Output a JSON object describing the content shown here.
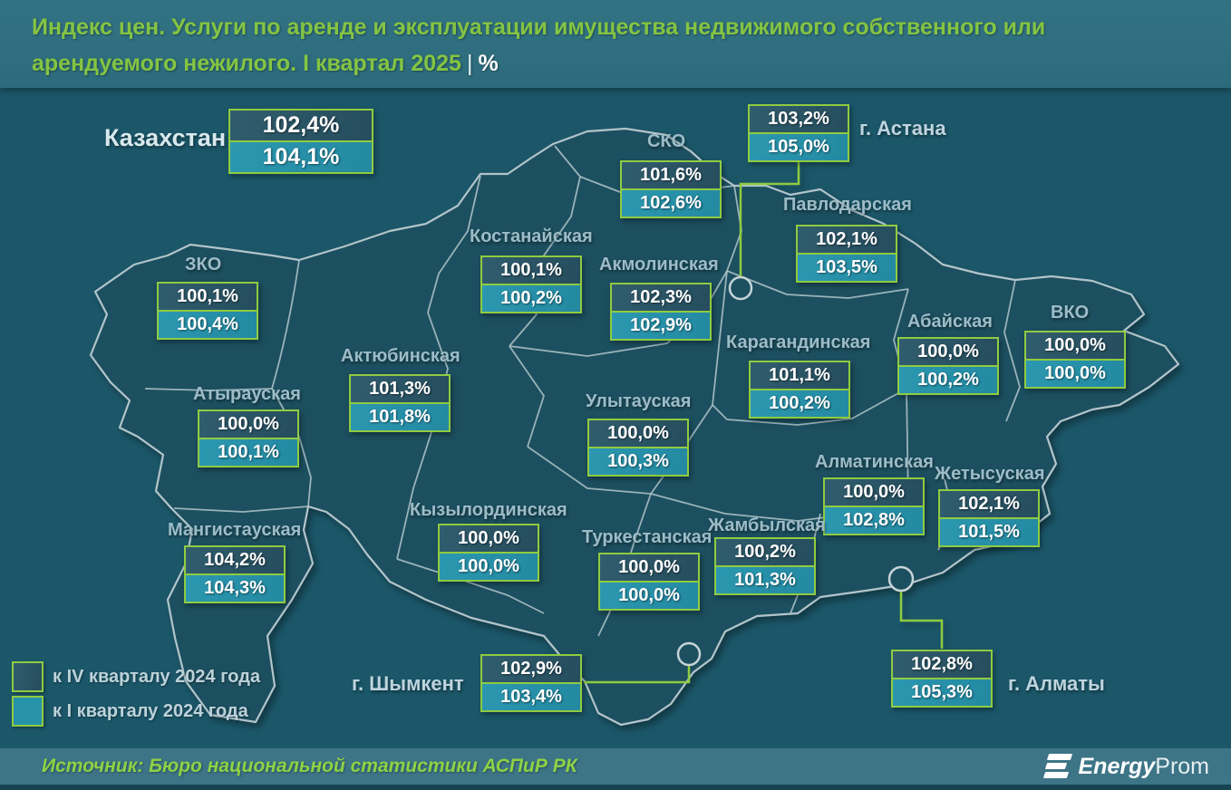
{
  "title": {
    "line1": "Индекс цен. Услуги по аренде и эксплуатации имущества недвижимого собственного или",
    "line2": "арендуемого нежилого. I квартал 2025",
    "separator": "|",
    "unit": "%"
  },
  "national": {
    "name": "Казахстан",
    "q4": "102,4%",
    "q1": "104,1%"
  },
  "regions": [
    {
      "id": "sko",
      "name": "СКО",
      "q4": "101,6%",
      "q1": "102,6%"
    },
    {
      "id": "astana",
      "name": "г. Астана",
      "q4": "103,2%",
      "q1": "105,0%"
    },
    {
      "id": "pavlodar",
      "name": "Павлодарская",
      "q4": "102,1%",
      "q1": "103,5%"
    },
    {
      "id": "kostanay",
      "name": "Костанайская",
      "q4": "100,1%",
      "q1": "100,2%"
    },
    {
      "id": "akmola",
      "name": "Акмолинская",
      "q4": "102,3%",
      "q1": "102,9%"
    },
    {
      "id": "zko",
      "name": "ЗКО",
      "q4": "100,1%",
      "q1": "100,4%"
    },
    {
      "id": "aktobe",
      "name": "Актюбинская",
      "q4": "101,3%",
      "q1": "101,8%"
    },
    {
      "id": "atyrau",
      "name": "Атырауская",
      "q4": "100,0%",
      "q1": "100,1%"
    },
    {
      "id": "karaganda",
      "name": "Карагандинская",
      "q4": "101,1%",
      "q1": "100,2%"
    },
    {
      "id": "abay",
      "name": "Абайская",
      "q4": "100,0%",
      "q1": "100,2%"
    },
    {
      "id": "vko",
      "name": "ВКО",
      "q4": "100,0%",
      "q1": "100,0%"
    },
    {
      "id": "ulytau",
      "name": "Улытауская",
      "q4": "100,0%",
      "q1": "100,3%"
    },
    {
      "id": "almaty-obl",
      "name": "Алматинская",
      "q4": "100,0%",
      "q1": "102,8%"
    },
    {
      "id": "zhetysu",
      "name": "Жетысуская",
      "q4": "102,1%",
      "q1": "101,5%"
    },
    {
      "id": "mangystau",
      "name": "Мангистауская",
      "q4": "104,2%",
      "q1": "104,3%"
    },
    {
      "id": "kyzylorda",
      "name": "Кызылординская",
      "q4": "100,0%",
      "q1": "100,0%"
    },
    {
      "id": "turkestan",
      "name": "Туркестанская",
      "q4": "100,0%",
      "q1": "100,0%"
    },
    {
      "id": "zhambyl",
      "name": "Жамбылская",
      "q4": "100,2%",
      "q1": "101,3%"
    },
    {
      "id": "shymkent",
      "name": "г. Шымкент",
      "q4": "102,9%",
      "q1": "103,4%"
    },
    {
      "id": "almaty-city",
      "name": "г. Алматы",
      "q4": "102,8%",
      "q1": "105,3%"
    }
  ],
  "legend": [
    {
      "label": "к IV кварталу 2024 года",
      "color": "#2c5868"
    },
    {
      "label": "к I кварталу 2024 года",
      "color": "#2793ab"
    }
  ],
  "source": "Источник: Бюро национальной статистики АСПиР РК",
  "logo": {
    "bold": "Energy",
    "light": "Prom"
  },
  "colors": {
    "header_bg": "#2e6e7e",
    "map_bg": "#1b5769",
    "region_fill": "#1a4f5f",
    "border_stroke": "#b2c4ca",
    "box_border_green": "#90cb41",
    "box_dark": "#2a5565",
    "box_light": "#2793ab",
    "title_green": "#84c443",
    "footer_bg": "#3d7587",
    "value_text": "#ffffff"
  },
  "chart_data": {
    "type": "table",
    "title": "Индекс цен. Услуги по аренде и эксплуатации имущества недвижимого собственного или арендуемого нежилого. I квартал 2025, %",
    "columns": [
      "Регион",
      "к IV кварталу 2024 года",
      "к I кварталу 2024 года"
    ],
    "rows": [
      [
        "Казахстан",
        102.4,
        104.1
      ],
      [
        "СКО",
        101.6,
        102.6
      ],
      [
        "г. Астана",
        103.2,
        105.0
      ],
      [
        "Павлодарская",
        102.1,
        103.5
      ],
      [
        "Костанайская",
        100.1,
        100.2
      ],
      [
        "Акмолинская",
        102.3,
        102.9
      ],
      [
        "ЗКО",
        100.1,
        100.4
      ],
      [
        "Актюбинская",
        101.3,
        101.8
      ],
      [
        "Атырауская",
        100.0,
        100.1
      ],
      [
        "Карагандинская",
        101.1,
        100.2
      ],
      [
        "Абайская",
        100.0,
        100.2
      ],
      [
        "ВКО",
        100.0,
        100.0
      ],
      [
        "Улытауская",
        100.0,
        100.3
      ],
      [
        "Алматинская",
        100.0,
        102.8
      ],
      [
        "Жетысуская",
        102.1,
        101.5
      ],
      [
        "Мангистауская",
        104.2,
        104.3
      ],
      [
        "Кызылординская",
        100.0,
        100.0
      ],
      [
        "Туркестанская",
        100.0,
        100.0
      ],
      [
        "Жамбылская",
        100.2,
        101.3
      ],
      [
        "г. Шымкент",
        102.9,
        103.4
      ],
      [
        "г. Алматы",
        102.8,
        105.3
      ]
    ]
  }
}
